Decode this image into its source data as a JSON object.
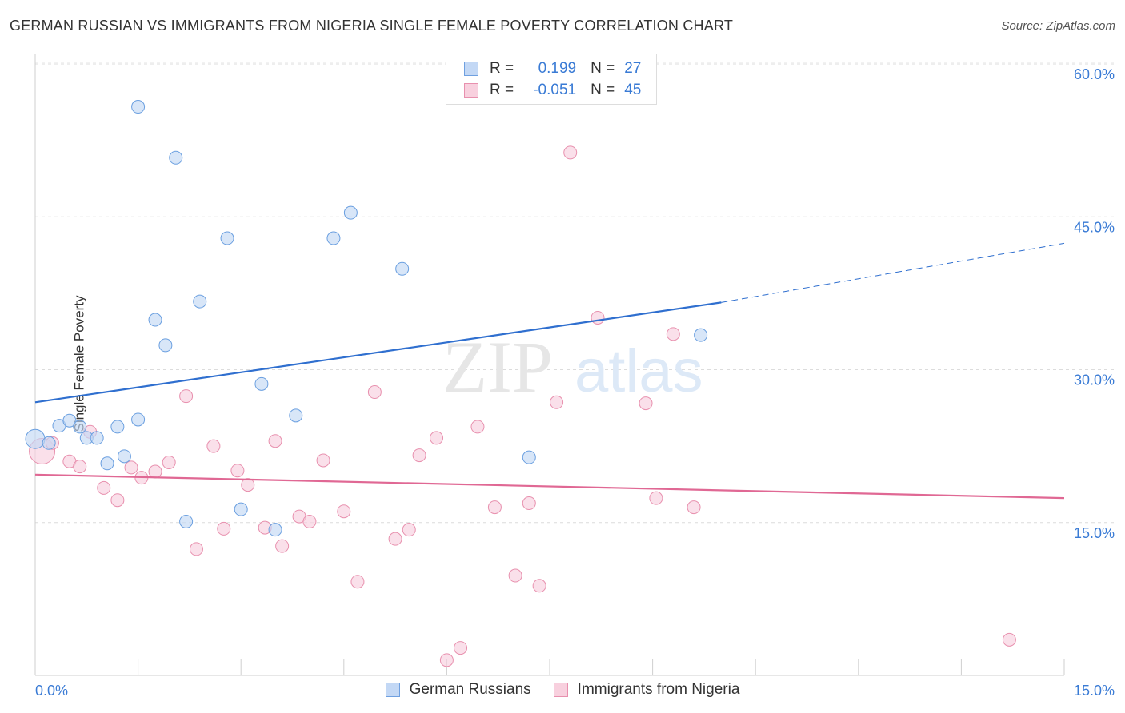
{
  "title": "GERMAN RUSSIAN VS IMMIGRANTS FROM NIGERIA SINGLE FEMALE POVERTY CORRELATION CHART",
  "source": "Source: ZipAtlas.com",
  "watermark": {
    "zip": "ZIP",
    "atlas": "atlas"
  },
  "legend": {
    "r_label": "R =",
    "n_label": "N =",
    "rows": [
      {
        "r": "0.199",
        "n": "27",
        "color": "#a9c8f0",
        "border": "#6fa0e0"
      },
      {
        "r": "-0.051",
        "n": "45",
        "color": "#f6c0d2",
        "border": "#e890ae"
      }
    ]
  },
  "colors": {
    "blue": "#6a9fe0",
    "blue_fill": "#c3d8f5",
    "blue_line": "#2f6fcf",
    "pink": "#e890ae",
    "pink_fill": "#f8d0de",
    "pink_line": "#e06894",
    "axis_text": "#3a7bd5"
  },
  "chart_data": {
    "type": "scatter",
    "title": "GERMAN RUSSIAN VS IMMIGRANTS FROM NIGERIA SINGLE FEMALE POVERTY CORRELATION CHART",
    "xlabel": "",
    "ylabel": "Single Female Poverty",
    "xlim": [
      0,
      15
    ],
    "ylim": [
      0,
      62
    ],
    "x_tick_labels": [
      "0.0%",
      "15.0%"
    ],
    "y_ticks": [
      15,
      30,
      45,
      60
    ],
    "y_tick_labels": [
      "15.0%",
      "30.0%",
      "45.0%",
      "60.0%"
    ],
    "grid": true,
    "legend_position": "bottom-center",
    "series": [
      {
        "name": "German Russians",
        "color": "#6a9fe0",
        "points": [
          [
            0.0,
            23.2
          ],
          [
            0.2,
            22.8
          ],
          [
            0.35,
            24.5
          ],
          [
            0.5,
            25.0
          ],
          [
            0.65,
            24.4
          ],
          [
            0.75,
            23.3
          ],
          [
            0.9,
            23.3
          ],
          [
            1.05,
            20.8
          ],
          [
            1.2,
            24.4
          ],
          [
            1.3,
            21.5
          ],
          [
            1.5,
            25.1
          ],
          [
            1.5,
            55.8
          ],
          [
            1.75,
            34.9
          ],
          [
            1.9,
            32.4
          ],
          [
            2.05,
            50.8
          ],
          [
            2.2,
            15.1
          ],
          [
            2.4,
            36.7
          ],
          [
            2.8,
            42.9
          ],
          [
            3.0,
            16.3
          ],
          [
            3.3,
            28.6
          ],
          [
            3.5,
            14.3
          ],
          [
            3.8,
            25.5
          ],
          [
            4.35,
            42.9
          ],
          [
            4.6,
            45.4
          ],
          [
            5.35,
            39.9
          ],
          [
            7.2,
            21.4
          ],
          [
            9.7,
            33.4
          ]
        ],
        "trend": {
          "x": [
            0,
            10.0
          ],
          "y": [
            26.8,
            36.6
          ],
          "dash_to": [
            15,
            42.4
          ]
        }
      },
      {
        "name": "Immigrants from Nigeria",
        "color": "#e890ae",
        "points": [
          [
            0.1,
            22.0
          ],
          [
            0.25,
            22.8
          ],
          [
            0.5,
            21.0
          ],
          [
            0.65,
            20.5
          ],
          [
            0.8,
            23.9
          ],
          [
            1.0,
            18.4
          ],
          [
            1.2,
            17.2
          ],
          [
            1.4,
            20.4
          ],
          [
            1.55,
            19.4
          ],
          [
            1.75,
            20.0
          ],
          [
            1.95,
            20.9
          ],
          [
            2.2,
            27.4
          ],
          [
            2.35,
            12.4
          ],
          [
            2.6,
            22.5
          ],
          [
            2.75,
            14.4
          ],
          [
            2.95,
            20.1
          ],
          [
            3.1,
            18.7
          ],
          [
            3.35,
            14.5
          ],
          [
            3.5,
            23.0
          ],
          [
            3.6,
            12.7
          ],
          [
            3.85,
            15.6
          ],
          [
            4.0,
            15.1
          ],
          [
            4.2,
            21.1
          ],
          [
            4.5,
            16.1
          ],
          [
            4.7,
            9.2
          ],
          [
            4.95,
            27.8
          ],
          [
            5.25,
            13.4
          ],
          [
            5.45,
            14.3
          ],
          [
            5.6,
            21.6
          ],
          [
            5.85,
            23.3
          ],
          [
            6.0,
            1.5
          ],
          [
            6.2,
            2.7
          ],
          [
            6.45,
            24.4
          ],
          [
            6.7,
            16.5
          ],
          [
            7.0,
            9.8
          ],
          [
            7.2,
            16.9
          ],
          [
            7.35,
            8.8
          ],
          [
            7.6,
            26.8
          ],
          [
            7.8,
            51.3
          ],
          [
            8.2,
            35.1
          ],
          [
            8.9,
            26.7
          ],
          [
            9.05,
            17.4
          ],
          [
            9.3,
            33.5
          ],
          [
            9.6,
            16.5
          ],
          [
            14.2,
            3.5
          ]
        ],
        "trend": {
          "x": [
            0,
            15
          ],
          "y": [
            19.7,
            17.4
          ]
        }
      }
    ]
  }
}
